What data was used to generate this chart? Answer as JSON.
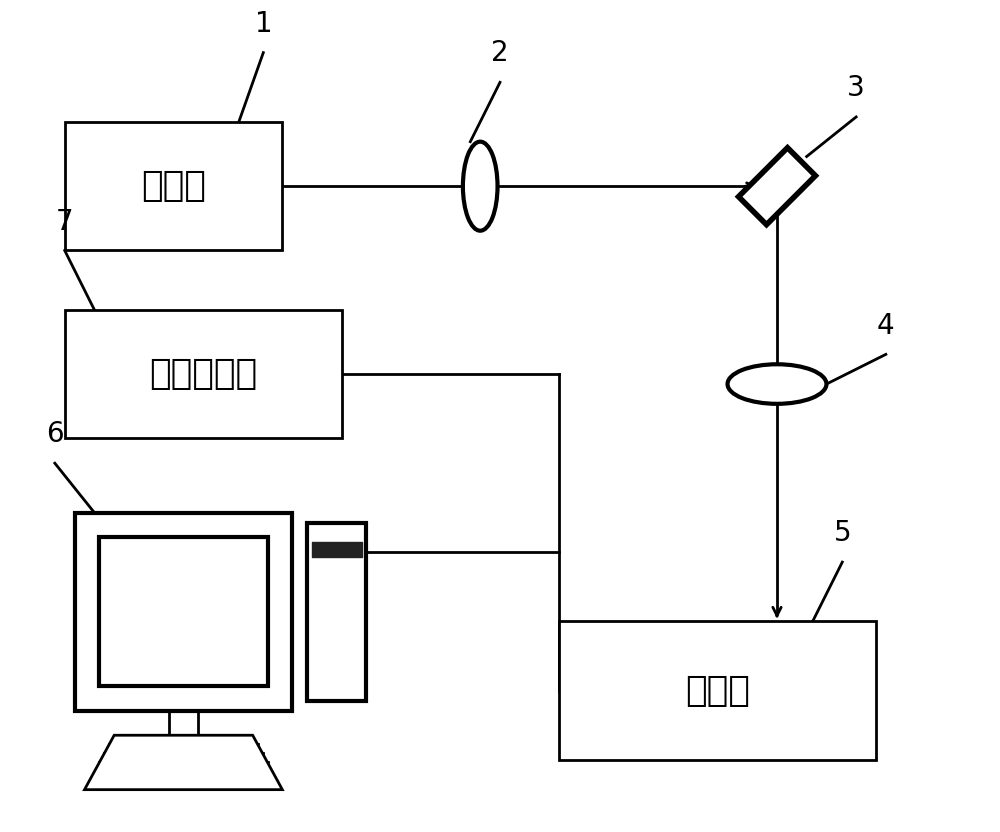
{
  "bg_color": "#ffffff",
  "line_color": "#000000",
  "label_1": "1",
  "label_2": "2",
  "label_3": "3",
  "label_4": "4",
  "label_5": "5",
  "label_6": "6",
  "label_7": "7",
  "text_jifayuan": "激发源",
  "text_guangpuyi": "光谱仪",
  "text_cunchu": "存储示波器",
  "font_size_main": 26,
  "font_size_labels": 20,
  "figsize": [
    10.0,
    8.32
  ]
}
